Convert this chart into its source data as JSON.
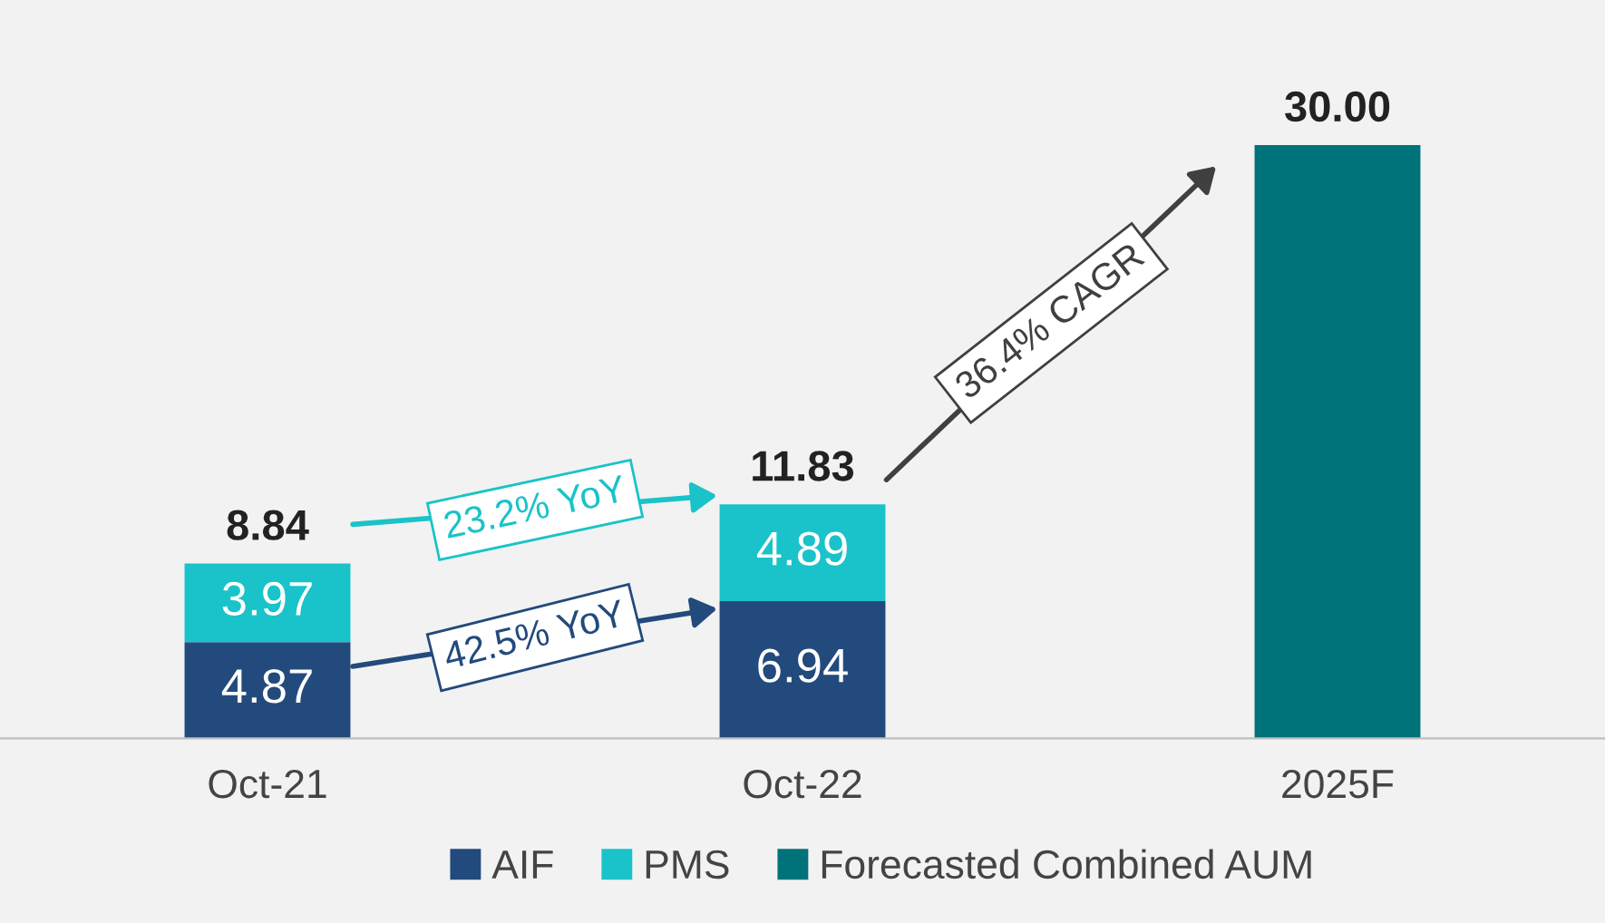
{
  "chart_data": {
    "type": "bar",
    "stacked": true,
    "categories": [
      "Oct-21",
      "Oct-22",
      "2025F"
    ],
    "series": [
      {
        "name": "AIF",
        "color": "#234a7c",
        "values": [
          4.87,
          6.94,
          null
        ],
        "value_labels": [
          "4.87",
          "6.94",
          null
        ]
      },
      {
        "name": "PMS",
        "color": "#19c3c9",
        "values": [
          3.97,
          4.89,
          null
        ],
        "value_labels": [
          "3.97",
          "4.89",
          null
        ]
      },
      {
        "name": "Forecasted Combined AUM",
        "color": "#00737a",
        "values": [
          null,
          null,
          30.0
        ],
        "value_labels": [
          null,
          null,
          null
        ]
      }
    ],
    "totals": [
      "8.84",
      "11.83",
      "30.00"
    ],
    "annotations": [
      "23.2% YoY",
      "42.5% YoY",
      "36.4% CAGR"
    ],
    "legend": "bottom",
    "grid": false
  }
}
